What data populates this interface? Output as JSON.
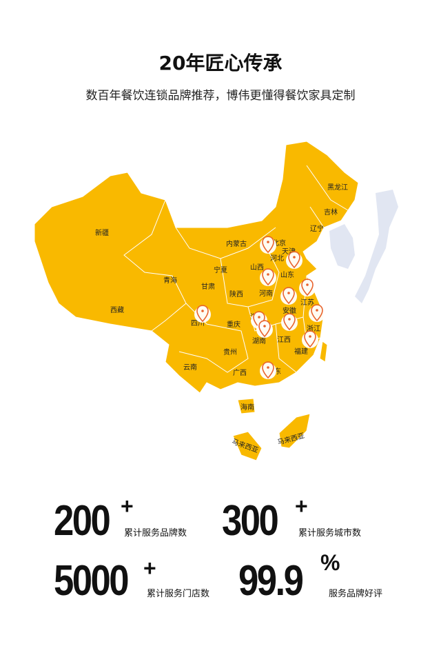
{
  "header": {
    "title": "20年匠心传承",
    "subtitle": "数百年餐饮连锁品牌推荐，博伟更懂得餐饮家具定制"
  },
  "map": {
    "fill_color": "#F9B900",
    "border_color": "#ffffff",
    "neighbor_color": "#E1E6F2",
    "pin_color": "#E8622C",
    "regions": [
      "新疆",
      "西藏",
      "青海",
      "甘肃",
      "宁夏",
      "内蒙古",
      "陕西",
      "山西",
      "北京",
      "天津",
      "河北",
      "山东",
      "河南",
      "江苏",
      "安徽",
      "湖北",
      "重庆",
      "四川",
      "浙江",
      "湖南",
      "江西",
      "福建",
      "贵州",
      "云南",
      "广西",
      "广东",
      "海南",
      "辽宁",
      "吉林",
      "黑龙江",
      "马来西亚",
      "马来西亚"
    ],
    "pins": [
      "北京",
      "山东",
      "河南",
      "江苏",
      "安徽",
      "四川",
      "浙江",
      "湖北",
      "湖南",
      "江西",
      "福建",
      "广东"
    ]
  },
  "stats": [
    {
      "value": "200",
      "suffix": "+",
      "label": "累计服务品牌数"
    },
    {
      "value": "300",
      "suffix": "+",
      "label": "累计服务城市数"
    },
    {
      "value": "5000",
      "suffix": "+",
      "label": "累计服务门店数"
    },
    {
      "value": "99.9",
      "suffix": "%",
      "label": "服务品牌好评"
    }
  ]
}
